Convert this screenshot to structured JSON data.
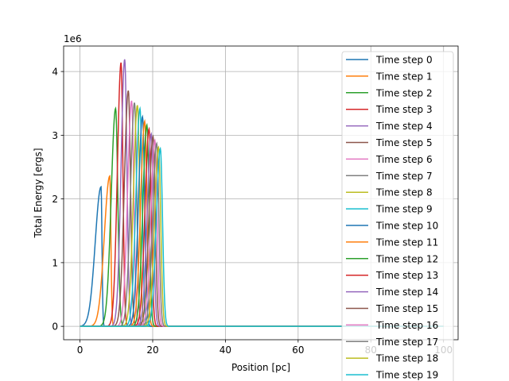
{
  "chart_data": {
    "type": "line",
    "xlabel": "Position [pc]",
    "ylabel": "Total Energy [ergs]",
    "y_offset_text": "1e6",
    "xlim": [
      -4.5,
      104
    ],
    "ylim": [
      -210000,
      4400000
    ],
    "xticks": [
      0,
      20,
      40,
      60,
      80,
      100
    ],
    "xtick_labels": [
      "0",
      "20",
      "40",
      "60",
      "80",
      "100"
    ],
    "yticks": [
      0,
      1000000,
      2000000,
      3000000,
      4000000
    ],
    "ytick_labels": [
      "0",
      "1",
      "2",
      "3",
      "4"
    ],
    "grid": true,
    "legend_position": "upper right",
    "x_max": 100,
    "series": [
      {
        "name": "Time step 0",
        "color": "#1f77b4",
        "peak_x": 5.8,
        "peak_y": 2190000,
        "left_width": 1.6,
        "right_width": 0.25
      },
      {
        "name": "Time step 1",
        "color": "#ff7f0e",
        "peak_x": 8.2,
        "peak_y": 2360000,
        "left_width": 1.5,
        "right_width": 0.3
      },
      {
        "name": "Time step 2",
        "color": "#2ca02c",
        "peak_x": 9.8,
        "peak_y": 3420000,
        "left_width": 1.2,
        "right_width": 0.6
      },
      {
        "name": "Time step 3",
        "color": "#d62728",
        "peak_x": 11.3,
        "peak_y": 4140000,
        "left_width": 1.0,
        "right_width": 0.5
      },
      {
        "name": "Time step 4",
        "color": "#9467bd",
        "peak_x": 12.3,
        "peak_y": 4190000,
        "left_width": 1.0,
        "right_width": 0.6
      },
      {
        "name": "Time step 5",
        "color": "#8c564b",
        "peak_x": 13.3,
        "peak_y": 3700000,
        "left_width": 1.1,
        "right_width": 0.6
      },
      {
        "name": "Time step 6",
        "color": "#e377c2",
        "peak_x": 14.2,
        "peak_y": 3540000,
        "left_width": 1.1,
        "right_width": 0.6
      },
      {
        "name": "Time step 7",
        "color": "#7f7f7f",
        "peak_x": 15.0,
        "peak_y": 3510000,
        "left_width": 1.1,
        "right_width": 0.6
      },
      {
        "name": "Time step 8",
        "color": "#bcbd22",
        "peak_x": 15.8,
        "peak_y": 3470000,
        "left_width": 1.1,
        "right_width": 0.6
      },
      {
        "name": "Time step 9",
        "color": "#17becf",
        "peak_x": 16.5,
        "peak_y": 3420000,
        "left_width": 1.1,
        "right_width": 0.6
      },
      {
        "name": "Time step 10",
        "color": "#1f77b4",
        "peak_x": 17.2,
        "peak_y": 3290000,
        "left_width": 1.1,
        "right_width": 0.6
      },
      {
        "name": "Time step 11",
        "color": "#ff7f0e",
        "peak_x": 17.8,
        "peak_y": 3220000,
        "left_width": 1.1,
        "right_width": 0.6
      },
      {
        "name": "Time step 12",
        "color": "#2ca02c",
        "peak_x": 18.4,
        "peak_y": 3160000,
        "left_width": 1.1,
        "right_width": 0.6
      },
      {
        "name": "Time step 13",
        "color": "#d62728",
        "peak_x": 19.0,
        "peak_y": 3100000,
        "left_width": 1.1,
        "right_width": 0.6
      },
      {
        "name": "Time step 14",
        "color": "#9467bd",
        "peak_x": 19.6,
        "peak_y": 3020000,
        "left_width": 1.1,
        "right_width": 0.6
      },
      {
        "name": "Time step 15",
        "color": "#8c564b",
        "peak_x": 20.1,
        "peak_y": 2980000,
        "left_width": 1.1,
        "right_width": 0.6
      },
      {
        "name": "Time step 16",
        "color": "#e377c2",
        "peak_x": 20.6,
        "peak_y": 2920000,
        "left_width": 1.1,
        "right_width": 0.6
      },
      {
        "name": "Time step 17",
        "color": "#7f7f7f",
        "peak_x": 21.1,
        "peak_y": 2870000,
        "left_width": 1.1,
        "right_width": 0.6
      },
      {
        "name": "Time step 18",
        "color": "#bcbd22",
        "peak_x": 21.6,
        "peak_y": 2810000,
        "left_width": 1.1,
        "right_width": 0.6
      },
      {
        "name": "Time step 19",
        "color": "#17becf",
        "peak_x": 22.1,
        "peak_y": 2790000,
        "left_width": 1.1,
        "right_width": 0.6
      }
    ]
  }
}
